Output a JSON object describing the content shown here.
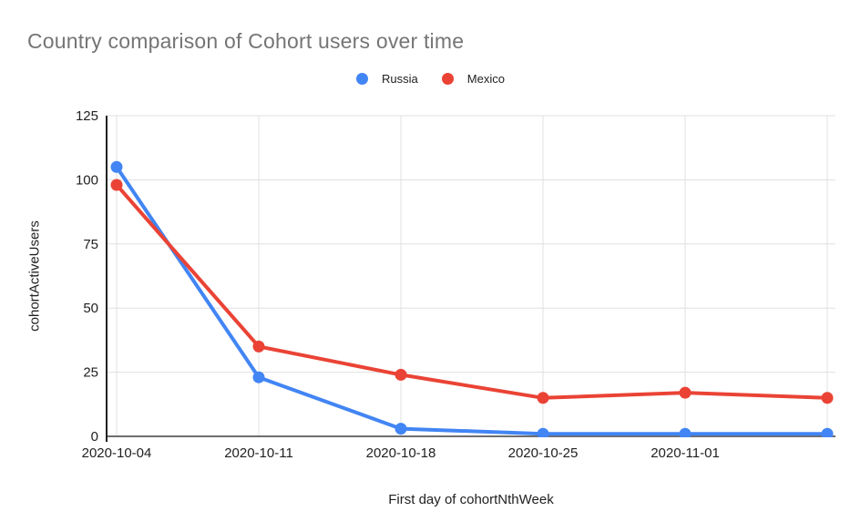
{
  "chart_data": {
    "type": "line",
    "title": "Country comparison of Cohort users over time",
    "xlabel": "First day of cohortNthWeek",
    "ylabel": "cohortActiveUsers",
    "x_tick_labels": [
      "2020-10-04",
      "2020-10-11",
      "2020-10-18",
      "2020-10-25",
      "2020-11-01",
      ""
    ],
    "num_points": 6,
    "ylim": [
      0,
      125
    ],
    "yticks": [
      0,
      25,
      50,
      75,
      100,
      125
    ],
    "grid": true,
    "legend_position": "top",
    "series": [
      {
        "name": "Russia",
        "color": "#4285F4",
        "values": [
          105,
          23,
          3,
          1,
          1,
          1
        ]
      },
      {
        "name": "Mexico",
        "color": "#EA4335",
        "values": [
          98,
          35,
          24,
          15,
          17,
          15
        ]
      }
    ]
  },
  "colors": {
    "title": "#757575",
    "axis_text": "#212121",
    "gridline": "#e0e0e0",
    "baseline": "#6e6e6e",
    "yaxis_line": "#212121",
    "background": "#ffffff"
  }
}
